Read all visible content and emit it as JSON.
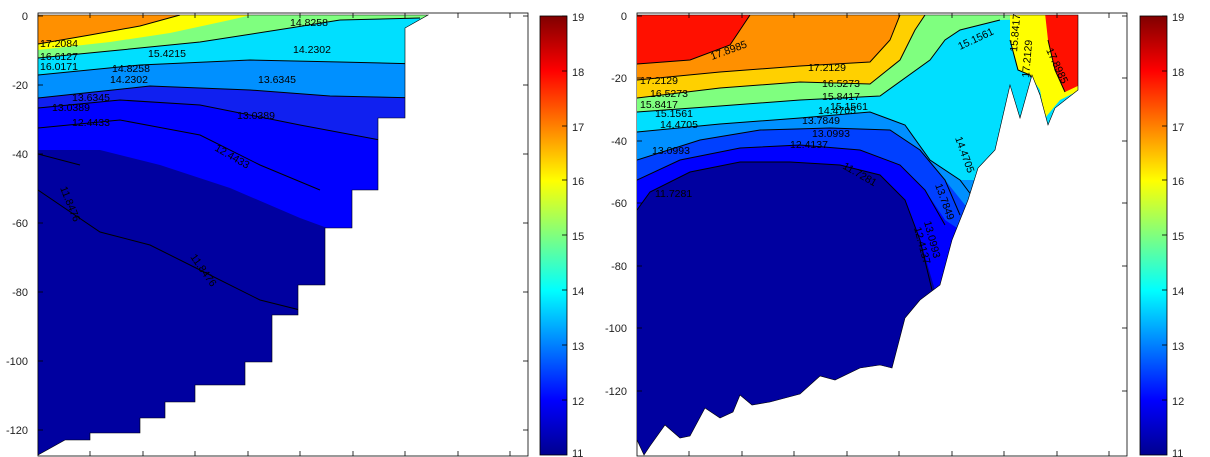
{
  "colormap": [
    "#00008f",
    "#0000ff",
    "#007fff",
    "#00ffff",
    "#7fff7f",
    "#ffff00",
    "#ff7f00",
    "#ff0000",
    "#800000"
  ],
  "chart_data": [
    {
      "type": "contour",
      "title": "",
      "xlabel": "",
      "ylabel": "",
      "ylim": [
        -128,
        0
      ],
      "yticks": [
        "0",
        "-20",
        "-40",
        "-60",
        "-80",
        "-100",
        "-120"
      ],
      "colorbar": {
        "range": [
          11,
          19
        ],
        "ticks": [
          "19",
          "18",
          "17",
          "16",
          "15",
          "14",
          "13",
          "12",
          "11"
        ]
      },
      "contour_labels": [
        "17.2084",
        "16.6127",
        "16.0171",
        "15.4215",
        "14.8258",
        "14.8258",
        "14.2302",
        "14.2302",
        "13.6345",
        "13.6345",
        "13.0389",
        "13.0389",
        "12.4433",
        "12.4433",
        "11.8476",
        "11.8476"
      ]
    },
    {
      "type": "contour",
      "title": "",
      "xlabel": "",
      "ylabel": "",
      "ylim": [
        -138,
        0
      ],
      "yticks": [
        "0",
        "-20",
        "-40",
        "-60",
        "-80",
        "-100",
        "-120"
      ],
      "colorbar": {
        "range": [
          11,
          19
        ],
        "ticks": [
          "19",
          "18",
          "17",
          "16",
          "15",
          "14",
          "13",
          "12",
          "11"
        ]
      },
      "contour_labels": [
        "17.8985",
        "17.2129",
        "17.2129",
        "16.5273",
        "16.5273",
        "15.8417",
        "15.8417",
        "15.8417",
        "15.1561",
        "15.1561",
        "15.1561",
        "14.4705",
        "14.4705",
        "14.4705",
        "13.7849",
        "13.7849",
        "13.0993",
        "13.0993",
        "13.0993",
        "12.4137",
        "12.4137",
        "11.7281",
        "11.7281",
        "17.2129",
        "17.8985"
      ]
    }
  ]
}
